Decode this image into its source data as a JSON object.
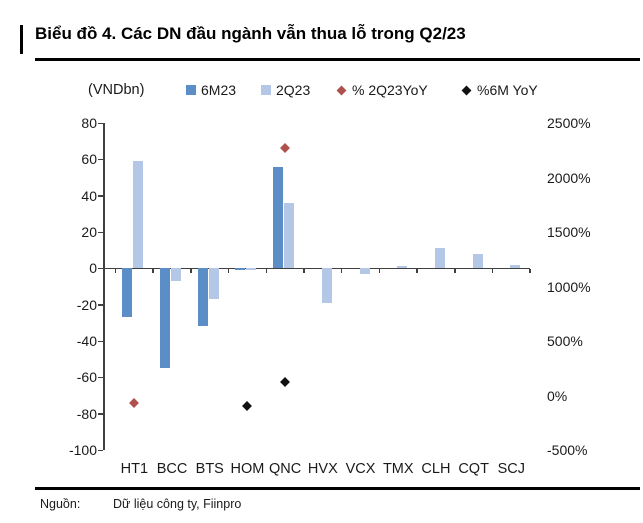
{
  "title": "Biểu đồ 4. Các DN đầu ngành vẫn thua lỗ trong Q2/23",
  "footer": {
    "source_label": "Nguồn:",
    "source_text": "Dữ liệu công ty, Fiinpro"
  },
  "colors": {
    "bar_6m23": "#5B8DC6",
    "bar_2q23": "#B4C7E7",
    "marker_2q23yoy": "#B0504D",
    "marker_6myoy": "#111111",
    "axis": "#404040"
  },
  "legend": [
    {
      "label": "6M23",
      "marker": "square",
      "color": "#5B8DC6"
    },
    {
      "label": "2Q23",
      "marker": "square",
      "color": "#B4C7E7"
    },
    {
      "label": "% 2Q23YoY",
      "marker": "diamond",
      "color": "#B0504D"
    },
    {
      "label": "%6M YoY",
      "marker": "diamond",
      "color": "#111111"
    }
  ],
  "chart_data": {
    "type": "bar",
    "title": "Biểu đồ 4. Các DN đầu ngành vẫn thua lỗ trong Q2/23",
    "categories": [
      "HT1",
      "BCC",
      "BTS",
      "HOM",
      "QNC",
      "HVX",
      "VCX",
      "TMX",
      "CLH",
      "CQT",
      "SCJ"
    ],
    "series": [
      {
        "name": "6M23",
        "type": "bar",
        "axis": "left",
        "color": "#5B8DC6",
        "values": [
          -27,
          -55,
          -32,
          -1,
          56,
          0,
          0,
          0,
          0,
          0,
          0
        ]
      },
      {
        "name": "2Q23",
        "type": "bar",
        "axis": "left",
        "color": "#B4C7E7",
        "values": [
          59,
          -7,
          -17,
          -1,
          36,
          -19,
          -3,
          1.5,
          11,
          8,
          2
        ]
      },
      {
        "name": "% 2Q23YoY",
        "type": "scatter",
        "axis": "right",
        "color": "#B0504D",
        "values": [
          -70,
          null,
          null,
          null,
          2270,
          null,
          null,
          null,
          null,
          null,
          null
        ]
      },
      {
        "name": "%6M YoY",
        "type": "scatter",
        "axis": "right",
        "color": "#111111",
        "values": [
          null,
          null,
          null,
          -100,
          125,
          null,
          null,
          null,
          null,
          null,
          null
        ]
      }
    ],
    "left_axis": {
      "label": "(VNDbn)",
      "min": -100,
      "max": 80,
      "step": 20
    },
    "right_axis": {
      "min": -500,
      "max": 2500,
      "step": 500,
      "suffix": "%"
    },
    "grid": false,
    "legend_position": "top"
  }
}
